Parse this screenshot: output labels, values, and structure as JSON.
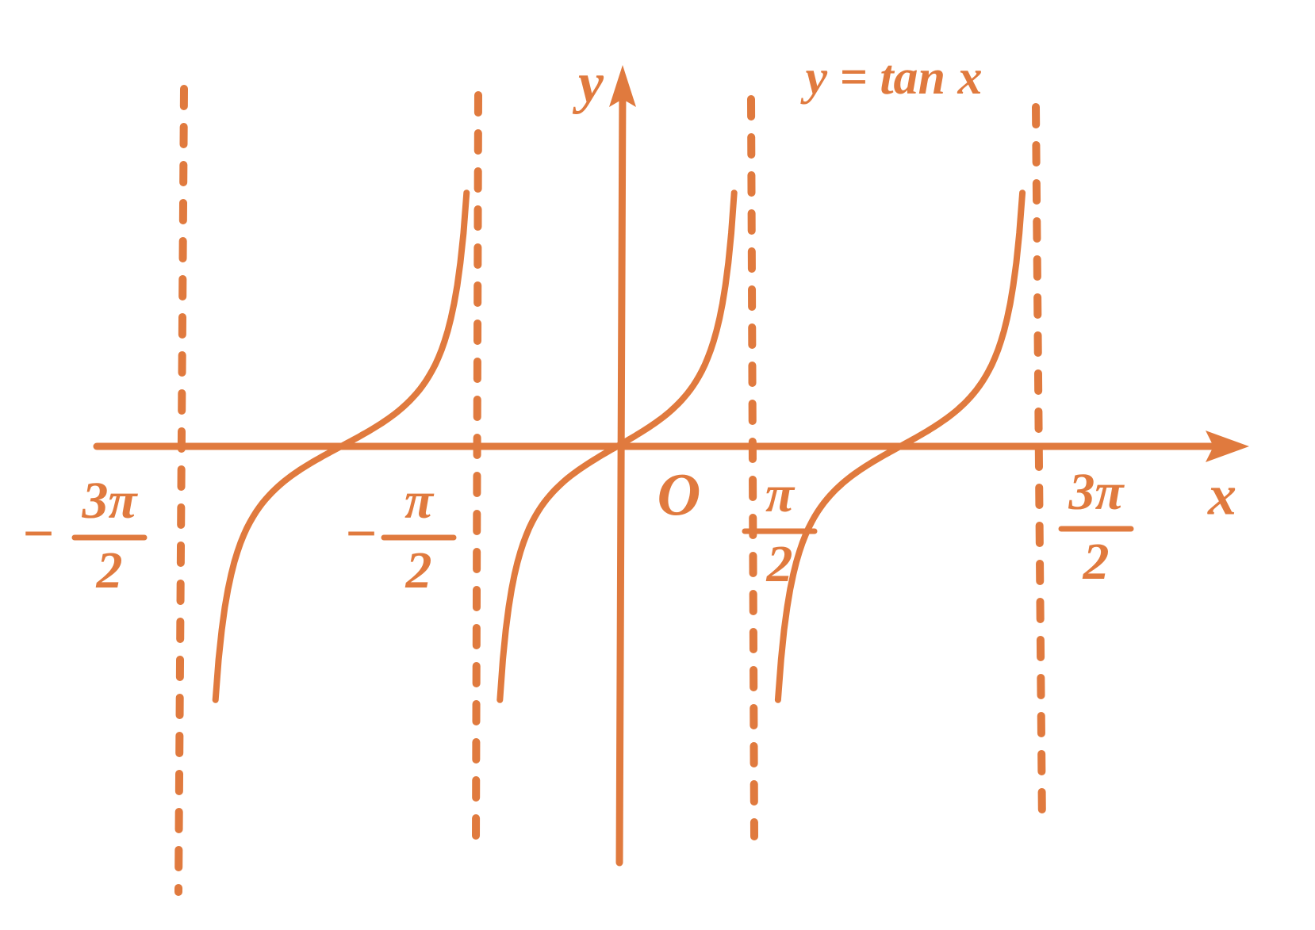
{
  "axes": {
    "x_label": "x",
    "y_label": "y",
    "origin_label": "O"
  },
  "curve_label": "y = tan x",
  "tick_labels": [
    {
      "sign": "−",
      "numerator": "3π",
      "denominator": "2"
    },
    {
      "sign": "−",
      "numerator": "π",
      "denominator": "2"
    },
    {
      "numerator": "π",
      "denominator": "2"
    },
    {
      "numerator": "3π",
      "denominator": "2"
    }
  ]
}
